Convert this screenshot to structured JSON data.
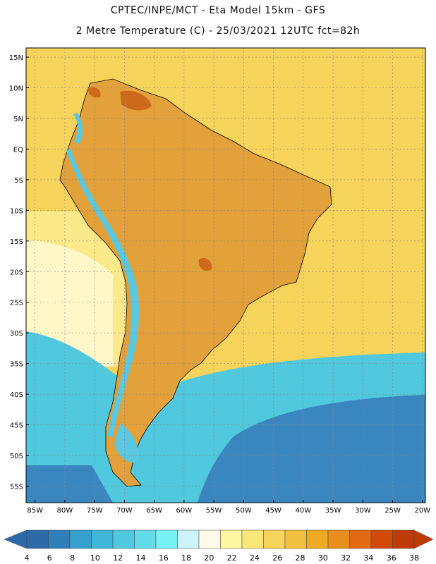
{
  "header": {
    "title_line1": "CPTEC/INPE/MCT -  Eta Model 15km - GFS",
    "title_line2": "2 Metre Temperature (C) - 25/03/2021 12UTC fct=82h"
  },
  "axes": {
    "lat_labels": [
      "15N",
      "10N",
      "5N",
      "EQ",
      "5S",
      "10S",
      "15S",
      "20S",
      "25S",
      "30S",
      "35S",
      "40S",
      "45S",
      "50S",
      "55S"
    ],
    "lat_values": [
      15,
      10,
      5,
      0,
      -5,
      -10,
      -15,
      -20,
      -25,
      -30,
      -35,
      -40,
      -45,
      -50,
      -55
    ],
    "lon_labels": [
      "85W",
      "80W",
      "75W",
      "70W",
      "65W",
      "60W",
      "55W",
      "50W",
      "45W",
      "40W",
      "35W",
      "30W",
      "25W",
      "20W"
    ],
    "lon_values": [
      -85,
      -80,
      -75,
      -70,
      -65,
      -60,
      -55,
      -50,
      -45,
      -40,
      -35,
      -30,
      -25,
      -20
    ]
  },
  "legend": {
    "ticks": [
      "4",
      "6",
      "8",
      "10",
      "12",
      "14",
      "16",
      "18",
      "20",
      "22",
      "24",
      "26",
      "28",
      "30",
      "32",
      "34",
      "36",
      "38"
    ],
    "colors": [
      "#2c6aa8",
      "#2f80b8",
      "#35a0cc",
      "#3fb6d8",
      "#4fc8e0",
      "#62dbe8",
      "#76f2f6",
      "#cdf4fb",
      "#fffbe8",
      "#fef6a0",
      "#fbe67a",
      "#f7d45c",
      "#f1c040",
      "#eeaa22",
      "#e98d1c",
      "#e26a10",
      "#d14a08",
      "#bf3a06"
    ],
    "left_arrow_color": "#2c6aa8",
    "right_arrow_color": "#bf3a06"
  },
  "map_colors": {
    "ocean_warm": "#f6d35a",
    "ocean_cool": "#fbe98a",
    "ocean_mid": "#fff7c8",
    "ocean_cold": "#50c9df",
    "ocean_deep": "#3a86bf",
    "land_hot": "#e2a13a",
    "land_very_hot": "#cc6a1a",
    "andes": "#5ac8e0",
    "coast": "#000000"
  }
}
